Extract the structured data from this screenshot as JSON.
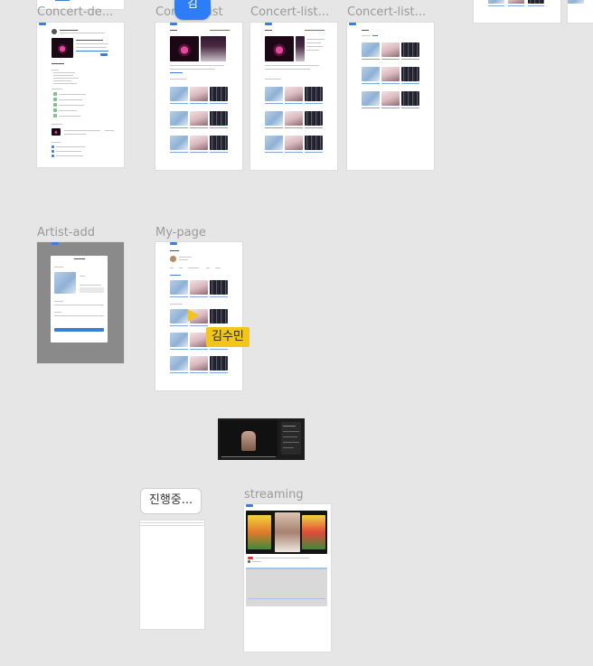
{
  "frames": {
    "concert_detail": {
      "label": "Concert-de..."
    },
    "concert_list": {
      "label": "Concert-list"
    },
    "concert_list_2": {
      "label": "Concert-list..."
    },
    "concert_list_3": {
      "label": "Concert-list..."
    },
    "artist_add": {
      "label": "Artist-add"
    },
    "my_page": {
      "label": "My-page"
    },
    "streaming": {
      "label": "streaming"
    }
  },
  "collaborators": {
    "avatar_initial": "김",
    "cursor_name": "김수민"
  },
  "status_pill": {
    "label": "진행중..."
  },
  "colors": {
    "canvas": "#e6e6e6",
    "accent_blue": "#2c7df7",
    "cursor_yellow": "#f3c41a",
    "overlay_gray": "#8a8a8a"
  },
  "icons": [
    "cursor-arrow-icon"
  ]
}
